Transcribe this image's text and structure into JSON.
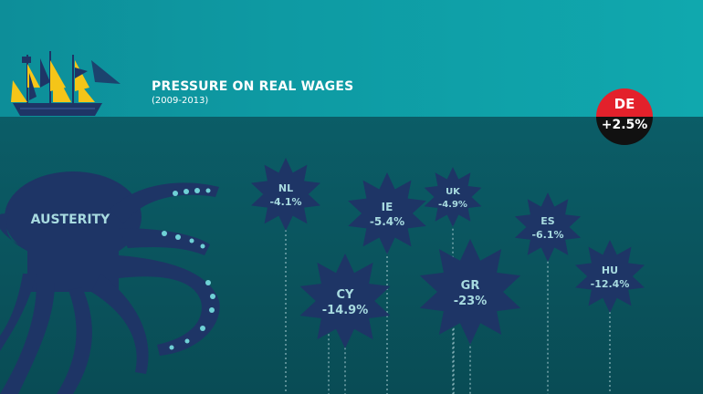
{
  "title": "PRESSURE ON REAL WAGES",
  "subtitle": "(2009-2013)",
  "octopus_label": "AUSTERITY",
  "buoy": {
    "country": "DE",
    "value": "+2.5%"
  },
  "stars": [
    {
      "country": "NL",
      "value": "-4.1%"
    },
    {
      "country": "IE",
      "value": "-5.4%"
    },
    {
      "country": "UK",
      "value": "-4.9%"
    },
    {
      "country": "ES",
      "value": "-6.1%"
    },
    {
      "country": "HU",
      "value": "-12.4%"
    },
    {
      "country": "CY",
      "value": "-14.9%"
    },
    {
      "country": "GR",
      "value": "-23%"
    }
  ],
  "colors": {
    "sky": "#0e9aa3",
    "sea": "#0a5560",
    "star": "#1e3566",
    "octopus": "#1e3566",
    "buoy_top": "#e3212b",
    "buoy_bottom": "#111111",
    "label": "#a8dbe0"
  }
}
